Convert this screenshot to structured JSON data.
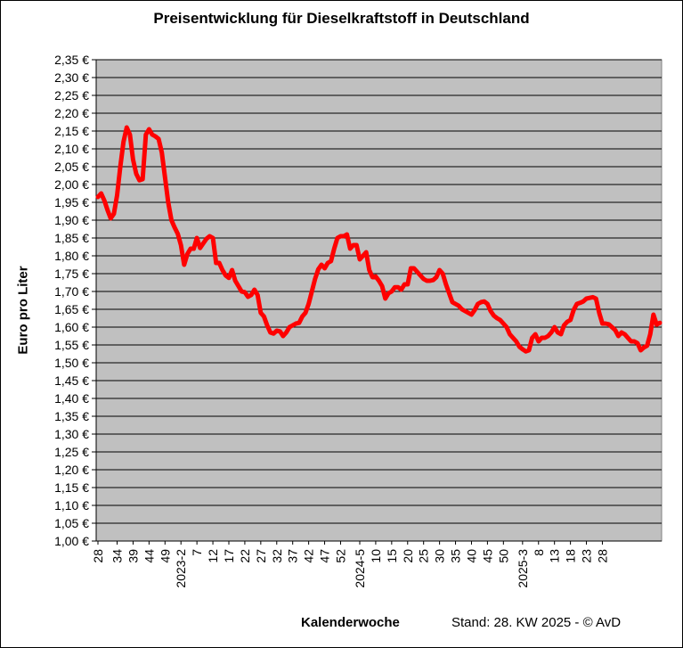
{
  "chart_data": {
    "type": "line",
    "title": "Preisentwicklung für Dieselkraftstoff in Deutschland",
    "ylabel": "Euro pro Liter",
    "xlabel": "Kalenderwoche",
    "footer": "Stand: 28. KW 2025 - © AvD",
    "ylim": [
      1.0,
      2.35
    ],
    "ystep": 0.05,
    "y_tick_format": "{v} €",
    "grid": true,
    "plot_background": "#c0c0c0",
    "series_color": "#ff0000",
    "x_tick_labels": [
      "28",
      "34",
      "39",
      "44",
      "49",
      "2023-2",
      "7",
      "12",
      "17",
      "22",
      "27",
      "32",
      "37",
      "42",
      "47",
      "52",
      "2024-5",
      "10",
      "15",
      "20",
      "25",
      "30",
      "35",
      "40",
      "45",
      "50",
      "2025-3",
      "8",
      "13",
      "18",
      "23",
      "28"
    ],
    "x_tick_positions": [
      0,
      6,
      11,
      16,
      21,
      26,
      31,
      36,
      41,
      46,
      51,
      56,
      61,
      66,
      71,
      76,
      82,
      87,
      92,
      97,
      102,
      107,
      112,
      117,
      122,
      127,
      133,
      138,
      143,
      148,
      153,
      158
    ],
    "series": [
      {
        "values": [
          1.965,
          1.975,
          1.955,
          1.928,
          1.905,
          1.918,
          1.97,
          2.05,
          2.12,
          2.16,
          2.14,
          2.07,
          2.03,
          2.012,
          2.015,
          2.14,
          2.155,
          2.14,
          2.135,
          2.128,
          2.09,
          2.02,
          1.95,
          1.9,
          1.88,
          1.862,
          1.83,
          1.775,
          1.805,
          1.82,
          1.82,
          1.85,
          1.822,
          1.835,
          1.848,
          1.855,
          1.85,
          1.78,
          1.78,
          1.76,
          1.745,
          1.738,
          1.76,
          1.73,
          1.715,
          1.7,
          1.698,
          1.685,
          1.69,
          1.705,
          1.69,
          1.64,
          1.63,
          1.605,
          1.585,
          1.582,
          1.59,
          1.588,
          1.575,
          1.585,
          1.6,
          1.605,
          1.61,
          1.612,
          1.63,
          1.64,
          1.665,
          1.7,
          1.735,
          1.762,
          1.775,
          1.765,
          1.78,
          1.785,
          1.82,
          1.85,
          1.855,
          1.855,
          1.86,
          1.82,
          1.83,
          1.83,
          1.79,
          1.8,
          1.81,
          1.76,
          1.74,
          1.742,
          1.73,
          1.715,
          1.68,
          1.695,
          1.7,
          1.712,
          1.712,
          1.705,
          1.72,
          1.72,
          1.765,
          1.765,
          1.755,
          1.745,
          1.735,
          1.73,
          1.73,
          1.732,
          1.74,
          1.76,
          1.75,
          1.72,
          1.695,
          1.67,
          1.665,
          1.66,
          1.65,
          1.645,
          1.64,
          1.635,
          1.648,
          1.665,
          1.67,
          1.672,
          1.665,
          1.645,
          1.632,
          1.625,
          1.62,
          1.61,
          1.6,
          1.58,
          1.57,
          1.56,
          1.545,
          1.538,
          1.532,
          1.535,
          1.57,
          1.58,
          1.56,
          1.57,
          1.57,
          1.575,
          1.585,
          1.6,
          1.585,
          1.58,
          1.605,
          1.615,
          1.62,
          1.648,
          1.665,
          1.668,
          1.672,
          1.68,
          1.682,
          1.684,
          1.68,
          1.64,
          1.61,
          1.61,
          1.608,
          1.6,
          1.592,
          1.575,
          1.585,
          1.58,
          1.57,
          1.56,
          1.56,
          1.555,
          1.535,
          1.543,
          1.548,
          1.58,
          1.635,
          1.607,
          1.612
        ]
      }
    ]
  }
}
